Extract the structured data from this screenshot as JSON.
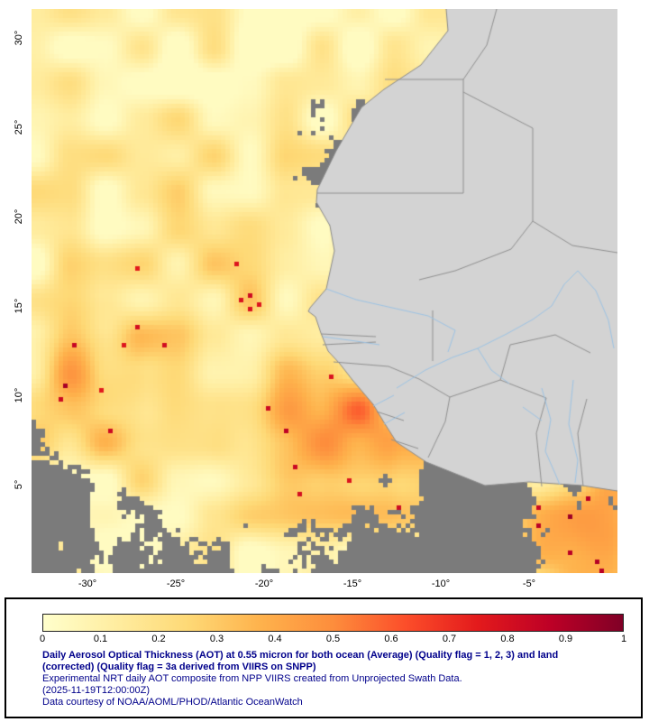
{
  "map": {
    "lat_ticks": [
      "30°",
      "25°",
      "20°",
      "15°",
      "10°",
      "5°"
    ],
    "lon_ticks": [
      "-30°",
      "-25°",
      "-20°",
      "-15°",
      "-10°",
      "-5°"
    ]
  },
  "colorbar": {
    "min": 0,
    "max": 1,
    "ticks": [
      "0",
      "0.1",
      "0.2",
      "0.3",
      "0.4",
      "0.5",
      "0.6",
      "0.7",
      "0.8",
      "0.9",
      "1"
    ],
    "gradient_stops": [
      "#ffffcc",
      "#ffeda0",
      "#fed976",
      "#feb24c",
      "#fd8d3c",
      "#fc4e2a",
      "#e31a1c",
      "#bd0026",
      "#800026"
    ]
  },
  "caption": {
    "title": "Daily Aerosol Optical Thickness (AOT) at 0.55 micron for both ocean (Average) (Quality flag = 1, 2, 3) and land (corrected) (Quality flag = 3a derived from VIIRS on SNPP)",
    "line2": "Experimental NRT daily AOT composite from NPP VIIRS created from Unprojected Swath Data.",
    "line3": "(2025-11-19T12:00:00Z)",
    "line4": "Data courtesy of NOAA/AOML/PHOD/Atlantic OceanWatch"
  },
  "colors": {
    "ocean_no_data": "#7b7b7b",
    "land": "#d3d3d3",
    "coastline": "#8a8a8a",
    "border_line": "#909090",
    "river": "#9cc3e4",
    "caption_text": "#00008b"
  }
}
